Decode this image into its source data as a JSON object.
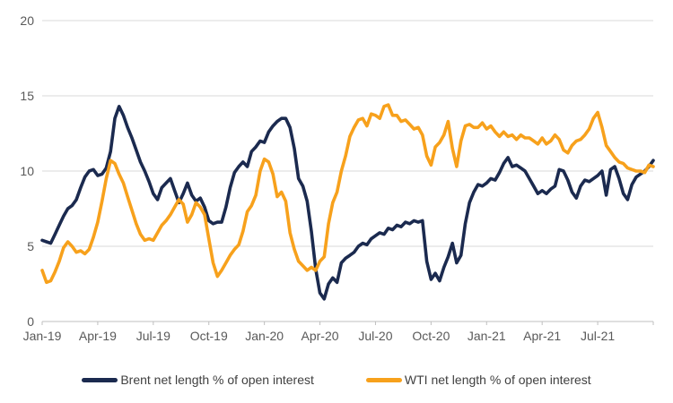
{
  "colors": {
    "background": "#ffffff",
    "gridline": "#d9d9d9",
    "axis_line": "#bfbfbf",
    "tick_label": "#595959",
    "legend_text": "#404040",
    "brent": "#1b2a4f",
    "wti": "#f7a11c"
  },
  "legend": {
    "items": [
      {
        "label": "Brent net length % of open interest",
        "color": "#1b2a4f"
      },
      {
        "label": "WTI net length % of open interest",
        "color": "#f7a11c"
      }
    ]
  },
  "chart_data": {
    "type": "line",
    "title": "",
    "xlabel": "",
    "ylabel": "",
    "grid": true,
    "legend_position": "bottom",
    "y_axis": {
      "ticks": [
        0,
        5,
        10,
        15,
        20
      ],
      "range": [
        0,
        20
      ]
    },
    "x_axis": {
      "tick_labels": [
        "Jan-19",
        "Apr-19",
        "Jul-19",
        "Oct-19",
        "Jan-20",
        "Apr-20",
        "Jul-20",
        "Oct-20",
        "Jan-21",
        "Apr-21",
        "Jul-21"
      ],
      "tick_positions_months": [
        0,
        3,
        6,
        9,
        12,
        15,
        18,
        21,
        24,
        27,
        30
      ],
      "axis_tick_marks_months": [
        0,
        3,
        6,
        9,
        12,
        15,
        18,
        21,
        24,
        27,
        30,
        33
      ],
      "range_months": [
        0,
        33
      ]
    },
    "x_step_weeks": 1,
    "weeks_total": 143,
    "series": [
      {
        "name": "Brent net length % of open interest",
        "color": "#1b2a4f",
        "values": [
          5.4,
          5.3,
          5.2,
          5.8,
          6.4,
          7.0,
          7.5,
          7.7,
          8.1,
          8.9,
          9.6,
          10.0,
          10.1,
          9.7,
          9.8,
          10.2,
          11.3,
          13.5,
          14.3,
          13.7,
          12.9,
          12.2,
          11.4,
          10.6,
          10.0,
          9.3,
          8.5,
          8.1,
          8.9,
          9.2,
          9.5,
          8.7,
          7.9,
          8.5,
          9.2,
          8.4,
          8.0,
          8.2,
          7.6,
          6.7,
          6.5,
          6.6,
          6.6,
          7.6,
          8.9,
          9.9,
          10.3,
          10.6,
          10.3,
          11.3,
          11.6,
          12.0,
          11.9,
          12.6,
          13.0,
          13.3,
          13.5,
          13.5,
          12.9,
          11.5,
          9.5,
          9.0,
          8.0,
          6.0,
          3.5,
          1.9,
          1.5,
          2.5,
          2.9,
          2.6,
          3.9,
          4.2,
          4.4,
          4.6,
          5.0,
          5.2,
          5.1,
          5.5,
          5.7,
          5.9,
          5.8,
          6.2,
          6.1,
          6.4,
          6.3,
          6.6,
          6.5,
          6.7,
          6.6,
          6.7,
          4.0,
          2.8,
          3.2,
          2.7,
          3.6,
          4.3,
          5.2,
          3.9,
          4.4,
          6.5,
          7.9,
          8.6,
          9.1,
          9.0,
          9.2,
          9.5,
          9.4,
          9.9,
          10.5,
          10.9,
          10.3,
          10.4,
          10.2,
          10.0,
          9.5,
          9.0,
          8.5,
          8.7,
          8.5,
          8.8,
          9.0,
          10.1,
          10.0,
          9.4,
          8.6,
          8.2,
          9.0,
          9.4,
          9.3,
          9.5,
          9.7,
          10.0,
          8.4,
          10.1,
          10.3,
          9.5,
          8.5,
          8.1,
          9.1,
          9.6,
          9.8,
          10.0,
          10.3,
          10.7
        ]
      },
      {
        "name": "WTI net length % of open interest",
        "color": "#f7a11c",
        "values": [
          3.4,
          2.6,
          2.7,
          3.3,
          4.0,
          4.9,
          5.3,
          5.0,
          4.6,
          4.7,
          4.5,
          4.8,
          5.6,
          6.6,
          8.0,
          9.5,
          10.7,
          10.5,
          9.8,
          9.2,
          8.3,
          7.4,
          6.5,
          5.8,
          5.4,
          5.5,
          5.4,
          5.9,
          6.4,
          6.7,
          7.1,
          7.6,
          8.1,
          7.8,
          6.6,
          7.1,
          7.9,
          7.6,
          7.1,
          5.5,
          3.9,
          3.0,
          3.4,
          3.9,
          4.4,
          4.8,
          5.1,
          6.0,
          7.3,
          7.7,
          8.4,
          10.0,
          10.8,
          10.6,
          9.8,
          8.3,
          8.6,
          8.0,
          5.9,
          4.8,
          4.0,
          3.7,
          3.4,
          3.6,
          3.4,
          4.0,
          4.3,
          6.5,
          7.9,
          8.6,
          10.0,
          11.0,
          12.3,
          12.9,
          13.4,
          13.5,
          13.0,
          13.8,
          13.7,
          13.5,
          14.3,
          14.4,
          13.7,
          13.7,
          13.3,
          13.4,
          13.1,
          12.8,
          12.9,
          12.4,
          11.0,
          10.4,
          11.6,
          11.9,
          12.4,
          13.3,
          11.5,
          10.3,
          12.0,
          13.0,
          13.1,
          12.9,
          12.9,
          13.2,
          12.8,
          13.0,
          12.6,
          12.3,
          12.6,
          12.3,
          12.4,
          12.1,
          12.4,
          12.2,
          12.2,
          12.0,
          11.8,
          12.2,
          11.8,
          12.0,
          12.4,
          12.1,
          11.4,
          11.2,
          11.7,
          12.0,
          12.1,
          12.4,
          12.8,
          13.5,
          13.9,
          12.9,
          11.7,
          11.3,
          10.9,
          10.6,
          10.5,
          10.2,
          10.1,
          10.0,
          10.0,
          9.9,
          10.4,
          10.3
        ]
      }
    ]
  }
}
